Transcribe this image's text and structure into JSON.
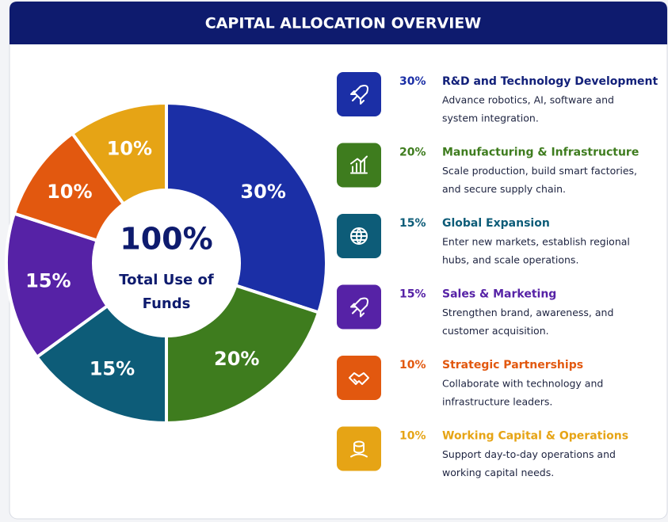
{
  "chart_data": {
    "type": "pie",
    "title": "CAPITAL ALLOCATION OVERVIEW",
    "center_value_label": "100%",
    "center_text": [
      "Total Use of",
      "Funds"
    ],
    "categories": [
      "R&D and Technology Development",
      "Manufacturing & Infrastructure",
      "Global Expansion",
      "Sales & Marketing",
      "Strategic Partnerships",
      "Working Capital & Operations"
    ],
    "values": [
      30,
      20,
      15,
      15,
      10,
      10
    ],
    "value_labels": [
      "30%",
      "20%",
      "15%",
      "15%",
      "10%",
      "10%"
    ],
    "colors": [
      "#1b2fa6",
      "#3e7c1e",
      "#0d5c78",
      "#5622a6",
      "#e2580f",
      "#e6a415"
    ],
    "descriptions": [
      [
        "Advance robotics, AI, software and",
        "system integration."
      ],
      [
        "Scale production, build smart factories,",
        "and secure supply chain."
      ],
      [
        "Enter new markets, establish regional",
        "hubs, and scale operations."
      ],
      [
        "Strengthen brand, awareness, and",
        "customer acquisition."
      ],
      [
        "Collaborate with technology and",
        "infrastructure leaders."
      ],
      [
        "Support day-to-day operations and",
        "working capital needs."
      ]
    ]
  }
}
